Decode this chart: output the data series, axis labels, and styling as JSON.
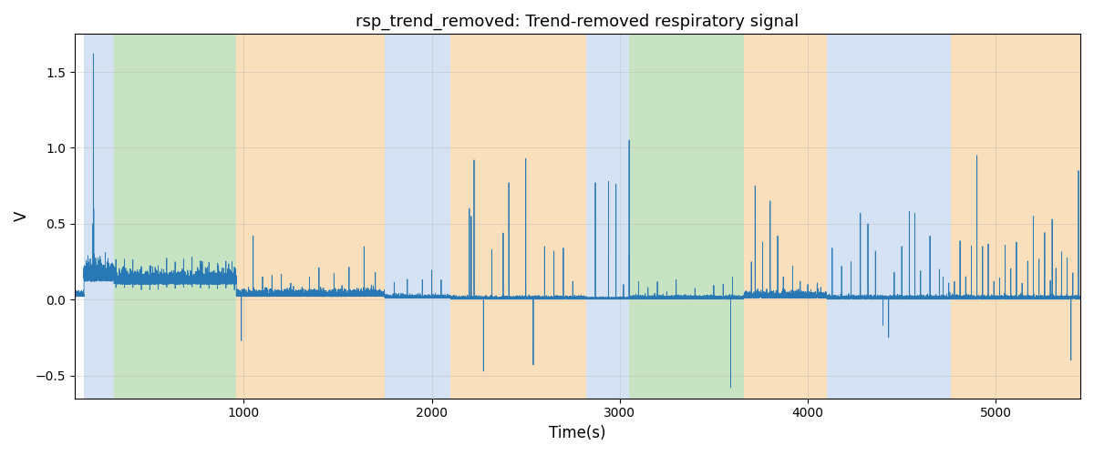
{
  "title": "rsp_trend_removed: Trend-removed respiratory signal",
  "xlabel": "Time(s)",
  "ylabel": "V",
  "xlim": [
    100,
    5450
  ],
  "ylim": [
    -0.65,
    1.75
  ],
  "line_color": "#2878b5",
  "line_width": 0.6,
  "background_regions": [
    {
      "xmin": 150,
      "xmax": 310,
      "color": "#adc6e8",
      "alpha": 0.5
    },
    {
      "xmin": 310,
      "xmax": 960,
      "color": "#90c987",
      "alpha": 0.5
    },
    {
      "xmin": 960,
      "xmax": 1750,
      "color": "#f4c07a",
      "alpha": 0.5
    },
    {
      "xmin": 1750,
      "xmax": 2100,
      "color": "#adc6e8",
      "alpha": 0.5
    },
    {
      "xmin": 2100,
      "xmax": 2820,
      "color": "#f4c07a",
      "alpha": 0.5
    },
    {
      "xmin": 2820,
      "xmax": 3050,
      "color": "#adc6e8",
      "alpha": 0.5
    },
    {
      "xmin": 3050,
      "xmax": 3660,
      "color": "#90c987",
      "alpha": 0.5
    },
    {
      "xmin": 3660,
      "xmax": 4100,
      "color": "#f4c07a",
      "alpha": 0.5
    },
    {
      "xmin": 4100,
      "xmax": 4760,
      "color": "#adc6e8",
      "alpha": 0.5
    },
    {
      "xmin": 4760,
      "xmax": 5450,
      "color": "#f4c07a",
      "alpha": 0.5
    }
  ],
  "yticks": [
    -0.5,
    0.0,
    0.5,
    1.0,
    1.5
  ],
  "xticks": [
    1000,
    2000,
    3000,
    4000,
    5000
  ],
  "grid_color": "#b0b0b0",
  "grid_alpha": 0.5,
  "grid_linewidth": 0.5
}
